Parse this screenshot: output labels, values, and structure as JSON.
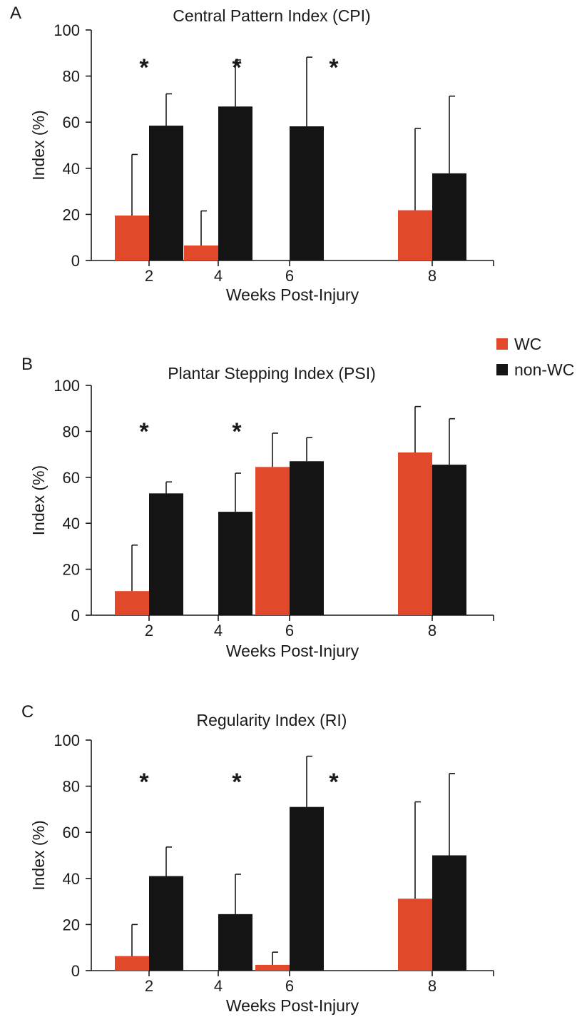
{
  "legend": {
    "entries": [
      {
        "label": "WC",
        "color": "#e2482a"
      },
      {
        "label": "non-WC",
        "color": "#141414"
      }
    ]
  },
  "chart_data": [
    {
      "type": "bar",
      "panel": "A",
      "title": "Central Pattern Index (CPI)",
      "xlabel": "Weeks Post-Injury",
      "ylabel": "Index (%)",
      "ylim": [
        0,
        100
      ],
      "yticks": [
        0,
        20,
        40,
        60,
        80,
        100
      ],
      "categories": [
        "2",
        "4",
        "6",
        "8"
      ],
      "series": [
        {
          "name": "WC",
          "color": "#e2482a",
          "values": [
            19.5,
            6.5,
            0,
            21.8
          ],
          "errors": [
            26.5,
            15,
            0,
            35.5
          ]
        },
        {
          "name": "non-WC",
          "color": "#141414",
          "values": [
            58.5,
            66.8,
            58.2,
            37.8
          ],
          "errors": [
            13.8,
            20.2,
            30,
            33.5
          ]
        }
      ],
      "significant": [
        true,
        true,
        true,
        false
      ],
      "significance_marker": "*"
    },
    {
      "type": "bar",
      "panel": "B",
      "title": "Plantar Stepping Index (PSI)",
      "xlabel": "Weeks Post-Injury",
      "ylabel": "Index (%)",
      "ylim": [
        0,
        100
      ],
      "yticks": [
        0,
        20,
        40,
        60,
        80,
        100
      ],
      "categories": [
        "2",
        "4",
        "6",
        "8"
      ],
      "series": [
        {
          "name": "WC",
          "color": "#e2482a",
          "values": [
            10.5,
            0,
            64.5,
            70.8
          ],
          "errors": [
            20,
            0,
            14.7,
            20
          ]
        },
        {
          "name": "non-WC",
          "color": "#141414",
          "values": [
            53,
            45,
            67,
            65.5
          ],
          "errors": [
            5,
            16.8,
            10.3,
            20
          ]
        }
      ],
      "significant": [
        true,
        true,
        false,
        false
      ],
      "significance_marker": "*"
    },
    {
      "type": "bar",
      "panel": "C",
      "title": "Regularity Index (RI)",
      "xlabel": "Weeks Post-Injury",
      "ylabel": "Index (%)",
      "ylim": [
        0,
        100
      ],
      "yticks": [
        0,
        20,
        40,
        60,
        80,
        100
      ],
      "categories": [
        "2",
        "4",
        "6",
        "8"
      ],
      "series": [
        {
          "name": "WC",
          "color": "#e2482a",
          "values": [
            6.3,
            0,
            2.5,
            31.2
          ],
          "errors": [
            13.7,
            0,
            5.5,
            42
          ]
        },
        {
          "name": "non-WC",
          "color": "#141414",
          "values": [
            41,
            24.5,
            71,
            50
          ],
          "errors": [
            12.6,
            17.3,
            22,
            35.5
          ]
        }
      ],
      "significant": [
        true,
        true,
        true,
        false
      ],
      "significance_marker": "*"
    }
  ]
}
